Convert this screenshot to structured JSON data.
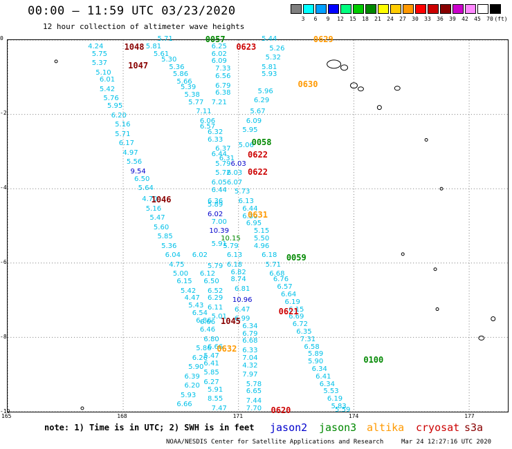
{
  "title": "00:00 – 11:59 UTC 03/23/2020",
  "subtitle": "12 hour collection of altimeter wave heights",
  "colorbar": {
    "unit": "(ft)",
    "colors": [
      "#7f7f7f",
      "#00ffff",
      "#00a0ff",
      "#0000ff",
      "#00ff7f",
      "#00cc00",
      "#008800",
      "#ffff00",
      "#ffcc00",
      "#ff9900",
      "#ff0000",
      "#cc0000",
      "#880000",
      "#cc00cc",
      "#ff88ff",
      "#ffffff",
      "#000000"
    ],
    "labels": [
      "3",
      "6",
      "9",
      "12",
      "15",
      "18",
      "21",
      "24",
      "27",
      "30",
      "33",
      "36",
      "39",
      "42",
      "45",
      "70"
    ]
  },
  "map": {
    "lon_range": [
      165,
      178
    ],
    "lat_range": [
      0,
      -10
    ],
    "x_ticks": [
      "165",
      "168",
      "171",
      "174",
      "177"
    ],
    "y_ticks": [
      "0",
      "-2",
      "-4",
      "-6",
      "-8",
      "-10"
    ],
    "grid": "dotted"
  },
  "value_colors": {
    "normal": "#00c0e8",
    "high": "#0000cc",
    "higher": "#0000cc",
    "green": "#008800"
  },
  "values": [
    {
      "lon": 169.1,
      "lat": -0.0,
      "v": "5.71"
    },
    {
      "lon": 171.8,
      "lat": -0.0,
      "v": "5.44"
    },
    {
      "lon": 167.3,
      "lat": -0.2,
      "v": "4.24"
    },
    {
      "lon": 168.8,
      "lat": -0.2,
      "v": "5.81"
    },
    {
      "lon": 170.5,
      "lat": -0.2,
      "v": "6.25"
    },
    {
      "lon": 172.0,
      "lat": -0.25,
      "v": "5.26"
    },
    {
      "lon": 167.4,
      "lat": -0.4,
      "v": "5.75"
    },
    {
      "lon": 169.0,
      "lat": -0.4,
      "v": "5.61"
    },
    {
      "lon": 170.5,
      "lat": -0.4,
      "v": "6.02"
    },
    {
      "lon": 171.9,
      "lat": -0.5,
      "v": "5.32"
    },
    {
      "lon": 167.4,
      "lat": -0.65,
      "v": "5.37"
    },
    {
      "lon": 169.2,
      "lat": -0.55,
      "v": "5.30"
    },
    {
      "lon": 170.5,
      "lat": -0.6,
      "v": "6.09"
    },
    {
      "lon": 167.5,
      "lat": -0.9,
      "v": "5.10"
    },
    {
      "lon": 169.4,
      "lat": -0.75,
      "v": "5.36"
    },
    {
      "lon": 170.6,
      "lat": -0.8,
      "v": "7.33"
    },
    {
      "lon": 171.8,
      "lat": -0.75,
      "v": "5.81"
    },
    {
      "lon": 167.6,
      "lat": -1.1,
      "v": "6.01"
    },
    {
      "lon": 169.5,
      "lat": -0.95,
      "v": "5.86"
    },
    {
      "lon": 170.6,
      "lat": -1.0,
      "v": "6.56"
    },
    {
      "lon": 171.8,
      "lat": -0.95,
      "v": "5.93"
    },
    {
      "lon": 167.6,
      "lat": -1.35,
      "v": "5.42"
    },
    {
      "lon": 169.6,
      "lat": -1.15,
      "v": "5.66"
    },
    {
      "lon": 170.6,
      "lat": -1.25,
      "v": "6.79"
    },
    {
      "lon": 167.7,
      "lat": -1.6,
      "v": "5.76"
    },
    {
      "lon": 169.7,
      "lat": -1.3,
      "v": "5.39"
    },
    {
      "lon": 170.6,
      "lat": -1.45,
      "v": "6.38"
    },
    {
      "lon": 171.7,
      "lat": -1.4,
      "v": "5.96"
    },
    {
      "lon": 167.8,
      "lat": -1.8,
      "v": "5.95"
    },
    {
      "lon": 169.8,
      "lat": -1.5,
      "v": "5.38"
    },
    {
      "lon": 170.5,
      "lat": -1.7,
      "v": "7.21"
    },
    {
      "lon": 171.6,
      "lat": -1.65,
      "v": "6.29"
    },
    {
      "lon": 167.9,
      "lat": -2.05,
      "v": "6.20"
    },
    {
      "lon": 169.9,
      "lat": -1.7,
      "v": "5.77"
    },
    {
      "lon": 170.1,
      "lat": -1.95,
      "v": "7.11"
    },
    {
      "lon": 171.5,
      "lat": -1.95,
      "v": "5.67"
    },
    {
      "lon": 168.0,
      "lat": -2.3,
      "v": "5.16"
    },
    {
      "lon": 170.2,
      "lat": -2.2,
      "v": "6.06"
    },
    {
      "lon": 171.4,
      "lat": -2.2,
      "v": "6.09"
    },
    {
      "lon": 168.0,
      "lat": -2.55,
      "v": "5.71"
    },
    {
      "lon": 170.2,
      "lat": -2.35,
      "v": "6.57"
    },
    {
      "lon": 170.4,
      "lat": -2.5,
      "v": "6.32"
    },
    {
      "lon": 171.3,
      "lat": -2.45,
      "v": "5.95"
    },
    {
      "lon": 168.1,
      "lat": -2.8,
      "v": "6.17"
    },
    {
      "lon": 170.4,
      "lat": -2.7,
      "v": "6.33"
    },
    {
      "lon": 170.6,
      "lat": -2.95,
      "v": "6.37"
    },
    {
      "lon": 171.2,
      "lat": -2.85,
      "v": "5.06"
    },
    {
      "lon": 168.2,
      "lat": -3.05,
      "v": "4.97"
    },
    {
      "lon": 170.5,
      "lat": -3.1,
      "v": "6.44"
    },
    {
      "lon": 170.7,
      "lat": -3.2,
      "v": "6.31"
    },
    {
      "lon": 168.3,
      "lat": -3.3,
      "v": "5.56"
    },
    {
      "lon": 170.6,
      "lat": -3.35,
      "v": "5.79",
      "c": "normal"
    },
    {
      "lon": 171.0,
      "lat": -3.35,
      "v": "6.03",
      "c": "higher"
    },
    {
      "lon": 168.4,
      "lat": -3.55,
      "v": "9.54",
      "c": "high"
    },
    {
      "lon": 170.6,
      "lat": -3.6,
      "v": "5.72"
    },
    {
      "lon": 170.9,
      "lat": -3.6,
      "v": "6.03"
    },
    {
      "lon": 168.5,
      "lat": -3.75,
      "v": "6.50"
    },
    {
      "lon": 170.5,
      "lat": -3.85,
      "v": "6.05"
    },
    {
      "lon": 170.9,
      "lat": -3.85,
      "v": "6.07"
    },
    {
      "lon": 168.6,
      "lat": -4.0,
      "v": "5.64"
    },
    {
      "lon": 170.5,
      "lat": -4.05,
      "v": "6.44"
    },
    {
      "lon": 171.1,
      "lat": -4.1,
      "v": "5.73"
    },
    {
      "lon": 168.7,
      "lat": -4.3,
      "v": "4.70"
    },
    {
      "lon": 170.4,
      "lat": -4.35,
      "v": "6.36"
    },
    {
      "lon": 171.2,
      "lat": -4.35,
      "v": "6.13"
    },
    {
      "lon": 168.8,
      "lat": -4.55,
      "v": "5.16"
    },
    {
      "lon": 170.4,
      "lat": -4.45,
      "v": "5.89"
    },
    {
      "lon": 171.3,
      "lat": -4.55,
      "v": "6.44"
    },
    {
      "lon": 168.9,
      "lat": -4.8,
      "v": "5.47"
    },
    {
      "lon": 170.4,
      "lat": -4.7,
      "v": "6.02",
      "c": "high"
    },
    {
      "lon": 171.3,
      "lat": -4.75,
      "v": "6.30"
    },
    {
      "lon": 169.0,
      "lat": -5.05,
      "v": "5.60"
    },
    {
      "lon": 170.5,
      "lat": -4.9,
      "v": "7.00"
    },
    {
      "lon": 171.4,
      "lat": -4.95,
      "v": "6.95"
    },
    {
      "lon": 169.1,
      "lat": -5.3,
      "v": "5.85"
    },
    {
      "lon": 170.5,
      "lat": -5.15,
      "v": "10.39",
      "c": "high"
    },
    {
      "lon": 171.6,
      "lat": -5.15,
      "v": "5.15"
    },
    {
      "lon": 169.2,
      "lat": -5.55,
      "v": "5.36"
    },
    {
      "lon": 170.8,
      "lat": -5.35,
      "v": "10.15",
      "c": "green"
    },
    {
      "lon": 171.6,
      "lat": -5.35,
      "v": "5.50"
    },
    {
      "lon": 169.3,
      "lat": -5.8,
      "v": "6.04"
    },
    {
      "lon": 170.5,
      "lat": -5.5,
      "v": "5.91"
    },
    {
      "lon": 170.8,
      "lat": -5.55,
      "v": "5.79"
    },
    {
      "lon": 171.6,
      "lat": -5.55,
      "v": "4.96"
    },
    {
      "lon": 169.4,
      "lat": -6.05,
      "v": "4.75"
    },
    {
      "lon": 170.0,
      "lat": -5.8,
      "v": "6.02"
    },
    {
      "lon": 170.9,
      "lat": -5.8,
      "v": "6.13"
    },
    {
      "lon": 171.8,
      "lat": -5.8,
      "v": "6.18"
    },
    {
      "lon": 169.5,
      "lat": -6.3,
      "v": "5.00"
    },
    {
      "lon": 170.4,
      "lat": -6.1,
      "v": "5.79"
    },
    {
      "lon": 170.9,
      "lat": -6.05,
      "v": "6.18"
    },
    {
      "lon": 171.9,
      "lat": -6.05,
      "v": "5.71"
    },
    {
      "lon": 169.6,
      "lat": -6.5,
      "v": "6.15"
    },
    {
      "lon": 170.2,
      "lat": -6.3,
      "v": "6.12"
    },
    {
      "lon": 171.0,
      "lat": -6.25,
      "v": "6.82"
    },
    {
      "lon": 172.0,
      "lat": -6.3,
      "v": "6.68"
    },
    {
      "lon": 169.7,
      "lat": -6.75,
      "v": "5.42"
    },
    {
      "lon": 170.3,
      "lat": -6.5,
      "v": "6.50"
    },
    {
      "lon": 171.0,
      "lat": -6.45,
      "v": "8.74"
    },
    {
      "lon": 172.1,
      "lat": -6.45,
      "v": "6.76"
    },
    {
      "lon": 169.8,
      "lat": -6.95,
      "v": "4.47"
    },
    {
      "lon": 170.4,
      "lat": -6.75,
      "v": "6.52"
    },
    {
      "lon": 171.1,
      "lat": -6.7,
      "v": "6.81"
    },
    {
      "lon": 172.2,
      "lat": -6.65,
      "v": "6.57"
    },
    {
      "lon": 169.9,
      "lat": -7.15,
      "v": "5.43"
    },
    {
      "lon": 170.4,
      "lat": -6.95,
      "v": "6.29"
    },
    {
      "lon": 171.1,
      "lat": -7.0,
      "v": "10.96",
      "c": "high"
    },
    {
      "lon": 172.3,
      "lat": -6.85,
      "v": "6.64"
    },
    {
      "lon": 170.0,
      "lat": -7.35,
      "v": "6.54"
    },
    {
      "lon": 170.4,
      "lat": -7.2,
      "v": "6.11"
    },
    {
      "lon": 171.1,
      "lat": -7.25,
      "v": "6.47"
    },
    {
      "lon": 172.4,
      "lat": -7.05,
      "v": "6.19"
    },
    {
      "lon": 170.1,
      "lat": -7.55,
      "v": "6.86"
    },
    {
      "lon": 170.5,
      "lat": -7.45,
      "v": "5.01"
    },
    {
      "lon": 171.1,
      "lat": -7.5,
      "v": "6.99"
    },
    {
      "lon": 172.5,
      "lat": -7.25,
      "v": "6.15"
    },
    {
      "lon": 170.2,
      "lat": -7.6,
      "v": "6.66"
    },
    {
      "lon": 171.3,
      "lat": -7.7,
      "v": "6.34"
    },
    {
      "lon": 172.5,
      "lat": -7.45,
      "v": "6.69"
    },
    {
      "lon": 170.2,
      "lat": -7.8,
      "v": "6.46"
    },
    {
      "lon": 171.3,
      "lat": -7.9,
      "v": "6.79"
    },
    {
      "lon": 172.6,
      "lat": -7.65,
      "v": "6.72"
    },
    {
      "lon": 170.3,
      "lat": -8.05,
      "v": "6.80"
    },
    {
      "lon": 171.3,
      "lat": -8.1,
      "v": "6.68"
    },
    {
      "lon": 172.7,
      "lat": -7.85,
      "v": "6.35"
    },
    {
      "lon": 170.1,
      "lat": -8.3,
      "v": "5.86"
    },
    {
      "lon": 170.4,
      "lat": -8.25,
      "v": "6.66"
    },
    {
      "lon": 171.3,
      "lat": -8.35,
      "v": "6.33"
    },
    {
      "lon": 172.8,
      "lat": -8.05,
      "v": "7.31"
    },
    {
      "lon": 170.0,
      "lat": -8.55,
      "v": "6.26"
    },
    {
      "lon": 170.3,
      "lat": -8.5,
      "v": "5.47"
    },
    {
      "lon": 171.3,
      "lat": -8.55,
      "v": "7.04"
    },
    {
      "lon": 172.9,
      "lat": -8.25,
      "v": "6.58"
    },
    {
      "lon": 169.9,
      "lat": -8.8,
      "v": "5.90"
    },
    {
      "lon": 170.3,
      "lat": -8.7,
      "v": "6.41"
    },
    {
      "lon": 171.3,
      "lat": -8.75,
      "v": "4.32"
    },
    {
      "lon": 173.0,
      "lat": -8.45,
      "v": "5.89"
    },
    {
      "lon": 169.8,
      "lat": -9.05,
      "v": "6.39"
    },
    {
      "lon": 170.3,
      "lat": -8.95,
      "v": "5.85"
    },
    {
      "lon": 171.3,
      "lat": -9.0,
      "v": "7.97"
    },
    {
      "lon": 173.0,
      "lat": -8.65,
      "v": "5.90"
    },
    {
      "lon": 169.8,
      "lat": -9.3,
      "v": "6.20"
    },
    {
      "lon": 170.3,
      "lat": -9.2,
      "v": "6.27"
    },
    {
      "lon": 171.4,
      "lat": -9.25,
      "v": "5.78"
    },
    {
      "lon": 173.1,
      "lat": -8.85,
      "v": "6.34"
    },
    {
      "lon": 169.7,
      "lat": -9.55,
      "v": "5.93"
    },
    {
      "lon": 170.4,
      "lat": -9.4,
      "v": "5.91"
    },
    {
      "lon": 171.4,
      "lat": -9.45,
      "v": "6.65"
    },
    {
      "lon": 173.2,
      "lat": -9.05,
      "v": "6.41"
    },
    {
      "lon": 169.6,
      "lat": -9.8,
      "v": "6.66"
    },
    {
      "lon": 170.4,
      "lat": -9.65,
      "v": "8.55"
    },
    {
      "lon": 171.4,
      "lat": -9.7,
      "v": "7.44"
    },
    {
      "lon": 173.3,
      "lat": -9.25,
      "v": "6.34"
    },
    {
      "lon": 170.5,
      "lat": -9.9,
      "v": "7.47"
    },
    {
      "lon": 171.4,
      "lat": -9.9,
      "v": "7.70"
    },
    {
      "lon": 173.4,
      "lat": -9.45,
      "v": "5.53"
    },
    {
      "lon": 173.5,
      "lat": -9.65,
      "v": "6.19"
    },
    {
      "lon": 173.6,
      "lat": -9.85,
      "v": "5.83"
    },
    {
      "lon": 173.7,
      "lat": -9.95,
      "v": "5.59"
    }
  ],
  "pass_labels": [
    {
      "lon": 170.4,
      "lat": 0.0,
      "text": "0057",
      "color": "#008800"
    },
    {
      "lon": 173.2,
      "lat": 0.0,
      "text": "0629",
      "color": "#ff9900"
    },
    {
      "lon": 168.3,
      "lat": -0.2,
      "text": "1048",
      "color": "#880000"
    },
    {
      "lon": 171.2,
      "lat": -0.2,
      "text": "0623",
      "color": "#cc0000"
    },
    {
      "lon": 168.4,
      "lat": -0.7,
      "text": "1047",
      "color": "#880000"
    },
    {
      "lon": 172.8,
      "lat": -1.2,
      "text": "0630",
      "color": "#ff9900"
    },
    {
      "lon": 171.6,
      "lat": -2.75,
      "text": "0058",
      "color": "#008800"
    },
    {
      "lon": 171.5,
      "lat": -3.1,
      "text": "0622",
      "color": "#cc0000"
    },
    {
      "lon": 171.5,
      "lat": -3.55,
      "text": "0622",
      "color": "#cc0000"
    },
    {
      "lon": 169.0,
      "lat": -4.3,
      "text": "1046",
      "color": "#880000"
    },
    {
      "lon": 171.5,
      "lat": -4.7,
      "text": "0631",
      "color": "#ff9900"
    },
    {
      "lon": 172.5,
      "lat": -5.85,
      "text": "0059",
      "color": "#008800"
    },
    {
      "lon": 172.3,
      "lat": -7.3,
      "text": "0621",
      "color": "#cc0000"
    },
    {
      "lon": 170.8,
      "lat": -7.55,
      "text": "1045",
      "color": "#880000"
    },
    {
      "lon": 170.7,
      "lat": -8.3,
      "text": "0632",
      "color": "#ff9900"
    },
    {
      "lon": 174.5,
      "lat": -8.6,
      "text": "0100",
      "color": "#008800"
    },
    {
      "lon": 172.1,
      "lat": -9.95,
      "text": "0620",
      "color": "#cc0000"
    }
  ],
  "note": "note: 1) Time is in UTC; 2) SWH is in feet",
  "legend": [
    {
      "name": "jason2",
      "color": "#0000cc"
    },
    {
      "name": "jason3",
      "color": "#008800"
    },
    {
      "name": "altika",
      "color": "#ff9900"
    },
    {
      "name": "cryosat",
      "color": "#cc0000"
    },
    {
      "name": "s3a",
      "color": "#880000"
    }
  ],
  "credit": "NOAA/NESDIS Center for Satellite Applications and Research",
  "credit_date": "Mar 24 12:27:16 UTC 2020"
}
